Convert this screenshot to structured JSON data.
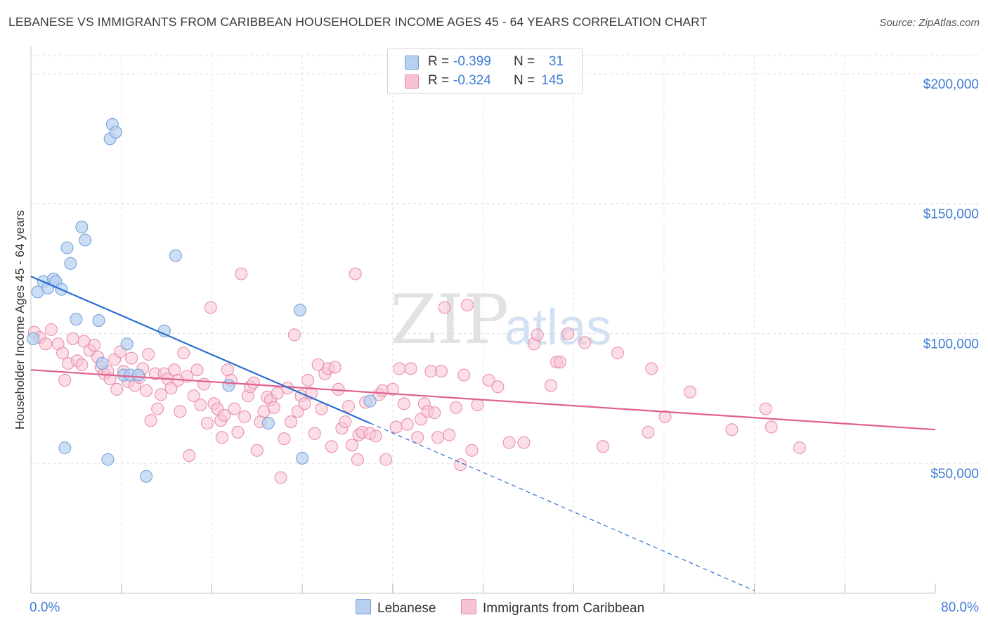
{
  "title": "LEBANESE VS IMMIGRANTS FROM CARIBBEAN HOUSEHOLDER INCOME AGES 45 - 64 YEARS CORRELATION CHART",
  "source": "Source: ZipAtlas.com",
  "watermark": {
    "zip": "ZIP",
    "atlas": "atlas"
  },
  "colors": {
    "lebanese_fill": "#b7d0f0",
    "lebanese_stroke": "#6f9cd8",
    "lebanese_line": "#2a6fd0",
    "caribbean_fill": "#f7c3d2",
    "caribbean_stroke": "#e889a8",
    "caribbean_line": "#e0608c",
    "axis_value": "#3f7dd4",
    "grid": "#e2e2e2"
  },
  "stats": [
    {
      "r_label": "R =",
      "r_value": "-0.399",
      "n_label": "N =",
      "n_value": "31"
    },
    {
      "r_label": "R =",
      "r_value": "-0.324",
      "n_label": "N =",
      "n_value": "145"
    }
  ],
  "legend": [
    "Lebanese",
    "Immigrants from Caribbean"
  ],
  "chart_data": {
    "type": "scatter",
    "title": "LEBANESE VS IMMIGRANTS FROM CARIBBEAN HOUSEHOLDER INCOME AGES 45 - 64 YEARS CORRELATION CHART",
    "xlabel": "",
    "ylabel": "Householder Income Ages 45 - 64 years",
    "xlim": [
      0,
      80
    ],
    "ylim": [
      0,
      210000
    ],
    "x_tick_labels": [
      "0.0%",
      "80.0%"
    ],
    "y_ticks": [
      50000,
      100000,
      150000,
      200000
    ],
    "y_tick_labels": [
      "$50,000",
      "$100,000",
      "$150,000",
      "$200,000"
    ],
    "grid": true,
    "legend_position": "bottom-center",
    "series": [
      {
        "name": "Lebanese",
        "points": [
          [
            0.2,
            98000
          ],
          [
            0.6,
            116000
          ],
          [
            1.1,
            120000
          ],
          [
            1.5,
            117500
          ],
          [
            2.0,
            121000
          ],
          [
            2.2,
            120000
          ],
          [
            2.7,
            117000
          ],
          [
            3.2,
            133000
          ],
          [
            3.5,
            127000
          ],
          [
            4.0,
            105500
          ],
          [
            4.5,
            141000
          ],
          [
            4.8,
            136000
          ],
          [
            6.0,
            105000
          ],
          [
            6.3,
            88500
          ],
          [
            6.8,
            51500
          ],
          [
            7.0,
            175000
          ],
          [
            7.2,
            180500
          ],
          [
            7.5,
            177500
          ],
          [
            8.2,
            84000
          ],
          [
            8.5,
            96000
          ],
          [
            8.8,
            84000
          ],
          [
            9.5,
            84000
          ],
          [
            10.2,
            45000
          ],
          [
            11.8,
            101000
          ],
          [
            12.8,
            130000
          ],
          [
            17.5,
            80000
          ],
          [
            21.0,
            65500
          ],
          [
            23.8,
            109000
          ],
          [
            24.0,
            52000
          ],
          [
            30.0,
            74000
          ],
          [
            3.0,
            56000
          ]
        ]
      },
      {
        "name": "Immigrants from Caribbean",
        "points": [
          [
            0.3,
            100500
          ],
          [
            0.8,
            98500
          ],
          [
            1.3,
            96000
          ],
          [
            1.8,
            101500
          ],
          [
            2.4,
            96000
          ],
          [
            2.8,
            92500
          ],
          [
            3.0,
            82000
          ],
          [
            3.3,
            88500
          ],
          [
            3.7,
            98000
          ],
          [
            4.1,
            89500
          ],
          [
            4.5,
            88000
          ],
          [
            4.7,
            97000
          ],
          [
            5.2,
            93500
          ],
          [
            5.6,
            95500
          ],
          [
            5.9,
            91000
          ],
          [
            6.2,
            87000
          ],
          [
            6.5,
            84500
          ],
          [
            6.8,
            85500
          ],
          [
            7.0,
            82500
          ],
          [
            7.4,
            90000
          ],
          [
            7.6,
            78500
          ],
          [
            7.9,
            93000
          ],
          [
            8.2,
            85500
          ],
          [
            8.6,
            81500
          ],
          [
            8.9,
            90500
          ],
          [
            9.2,
            80000
          ],
          [
            9.6,
            83000
          ],
          [
            9.9,
            86500
          ],
          [
            10.2,
            78000
          ],
          [
            10.4,
            92000
          ],
          [
            10.6,
            66500
          ],
          [
            11.0,
            84500
          ],
          [
            11.2,
            71000
          ],
          [
            11.5,
            76500
          ],
          [
            11.8,
            84500
          ],
          [
            12.1,
            82500
          ],
          [
            12.4,
            79000
          ],
          [
            12.7,
            86000
          ],
          [
            13.0,
            82000
          ],
          [
            13.2,
            70000
          ],
          [
            13.5,
            92500
          ],
          [
            13.8,
            83500
          ],
          [
            14.0,
            53000
          ],
          [
            14.4,
            76000
          ],
          [
            14.7,
            86000
          ],
          [
            15.0,
            72500
          ],
          [
            15.3,
            80500
          ],
          [
            15.6,
            65500
          ],
          [
            15.9,
            110000
          ],
          [
            16.2,
            73000
          ],
          [
            16.5,
            71000
          ],
          [
            16.8,
            66500
          ],
          [
            17.1,
            68500
          ],
          [
            17.4,
            86000
          ],
          [
            17.7,
            82000
          ],
          [
            18.0,
            71000
          ],
          [
            18.3,
            62000
          ],
          [
            18.6,
            123000
          ],
          [
            18.9,
            68000
          ],
          [
            19.2,
            76000
          ],
          [
            19.4,
            79500
          ],
          [
            19.7,
            81000
          ],
          [
            20.0,
            55000
          ],
          [
            20.3,
            66000
          ],
          [
            20.6,
            70000
          ],
          [
            20.9,
            75500
          ],
          [
            21.2,
            74500
          ],
          [
            21.5,
            71500
          ],
          [
            21.8,
            77000
          ],
          [
            22.1,
            44500
          ],
          [
            22.4,
            59500
          ],
          [
            22.7,
            79000
          ],
          [
            23.0,
            66000
          ],
          [
            23.3,
            99500
          ],
          [
            23.6,
            70000
          ],
          [
            23.9,
            76000
          ],
          [
            24.2,
            73000
          ],
          [
            24.5,
            82000
          ],
          [
            24.8,
            77000
          ],
          [
            25.1,
            61500
          ],
          [
            25.4,
            88000
          ],
          [
            25.7,
            71000
          ],
          [
            26.0,
            84500
          ],
          [
            26.3,
            86500
          ],
          [
            26.6,
            56500
          ],
          [
            26.9,
            87000
          ],
          [
            27.2,
            78500
          ],
          [
            27.5,
            63500
          ],
          [
            27.8,
            66000
          ],
          [
            28.1,
            72000
          ],
          [
            28.4,
            57000
          ],
          [
            28.7,
            123000
          ],
          [
            29.0,
            61000
          ],
          [
            29.3,
            62000
          ],
          [
            29.6,
            73500
          ],
          [
            30.0,
            61500
          ],
          [
            30.5,
            60500
          ],
          [
            30.8,
            76500
          ],
          [
            31.1,
            78000
          ],
          [
            31.4,
            51500
          ],
          [
            32.0,
            78500
          ],
          [
            32.3,
            64000
          ],
          [
            32.6,
            86500
          ],
          [
            33.0,
            73000
          ],
          [
            33.3,
            65000
          ],
          [
            33.6,
            86500
          ],
          [
            34.2,
            60000
          ],
          [
            34.5,
            67000
          ],
          [
            34.8,
            73000
          ],
          [
            35.1,
            70000
          ],
          [
            35.4,
            85500
          ],
          [
            35.7,
            69500
          ],
          [
            36.0,
            60000
          ],
          [
            36.3,
            85500
          ],
          [
            36.6,
            110000
          ],
          [
            37.0,
            61000
          ],
          [
            37.6,
            71500
          ],
          [
            38.0,
            49500
          ],
          [
            38.3,
            84000
          ],
          [
            38.6,
            111000
          ],
          [
            39.0,
            55000
          ],
          [
            39.5,
            72500
          ],
          [
            40.5,
            82000
          ],
          [
            41.3,
            79500
          ],
          [
            42.3,
            58000
          ],
          [
            43.6,
            58000
          ],
          [
            44.5,
            96000
          ],
          [
            44.8,
            99500
          ],
          [
            46.0,
            80000
          ],
          [
            46.5,
            89000
          ],
          [
            46.8,
            89000
          ],
          [
            47.5,
            100000
          ],
          [
            49.0,
            96500
          ],
          [
            50.6,
            56500
          ],
          [
            51.9,
            92500
          ],
          [
            54.6,
            62000
          ],
          [
            54.9,
            86500
          ],
          [
            56.1,
            68000
          ],
          [
            58.3,
            77500
          ],
          [
            62.0,
            63000
          ],
          [
            65.0,
            71000
          ],
          [
            65.5,
            64000
          ],
          [
            68.0,
            56000
          ],
          [
            28.9,
            51500
          ],
          [
            16.9,
            60000
          ]
        ]
      }
    ],
    "trendlines": [
      {
        "series": "Lebanese",
        "solid": [
          [
            0,
            122000
          ],
          [
            30,
            65500
          ]
        ],
        "dashed": [
          [
            30,
            65500
          ],
          [
            64,
            1000
          ]
        ]
      },
      {
        "series": "Immigrants from Caribbean",
        "solid": [
          [
            0,
            86000
          ],
          [
            80,
            63000
          ]
        ]
      }
    ]
  }
}
